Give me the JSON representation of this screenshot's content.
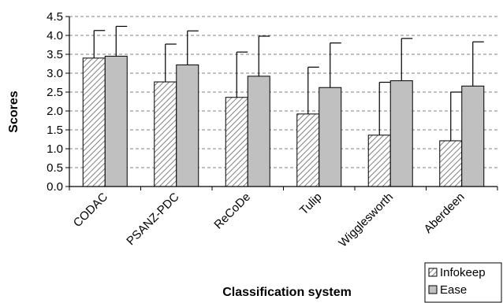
{
  "chart_data": {
    "type": "bar",
    "categories": [
      "CODAC",
      "PSANZ-PDC",
      "ReCoDe",
      "Tulip",
      "Wigglesworth",
      "Aberdeen"
    ],
    "series": [
      {
        "name": "Infokeep",
        "values": [
          3.4,
          2.77,
          2.36,
          1.92,
          1.36,
          1.21
        ],
        "errors": [
          0.73,
          1.0,
          1.2,
          1.24,
          1.4,
          1.29
        ],
        "color": "#ffffff",
        "pattern": "diagonal-hatch"
      },
      {
        "name": "Ease",
        "values": [
          3.45,
          3.22,
          2.92,
          2.62,
          2.8,
          2.66
        ],
        "errors": [
          0.79,
          0.9,
          1.06,
          1.18,
          1.12,
          1.17
        ],
        "color": "#c0c0c0",
        "pattern": "solid"
      }
    ],
    "title": "",
    "xlabel": "Classification system",
    "ylabel": "Scores",
    "ylim": [
      0,
      4.5
    ],
    "yticks": [
      "0.0",
      "0.5",
      "1.0",
      "1.5",
      "2.0",
      "2.5",
      "3.0",
      "3.5",
      "4.0",
      "4.5"
    ],
    "grid": "horizontal dashed",
    "legend": "bottom-right"
  }
}
